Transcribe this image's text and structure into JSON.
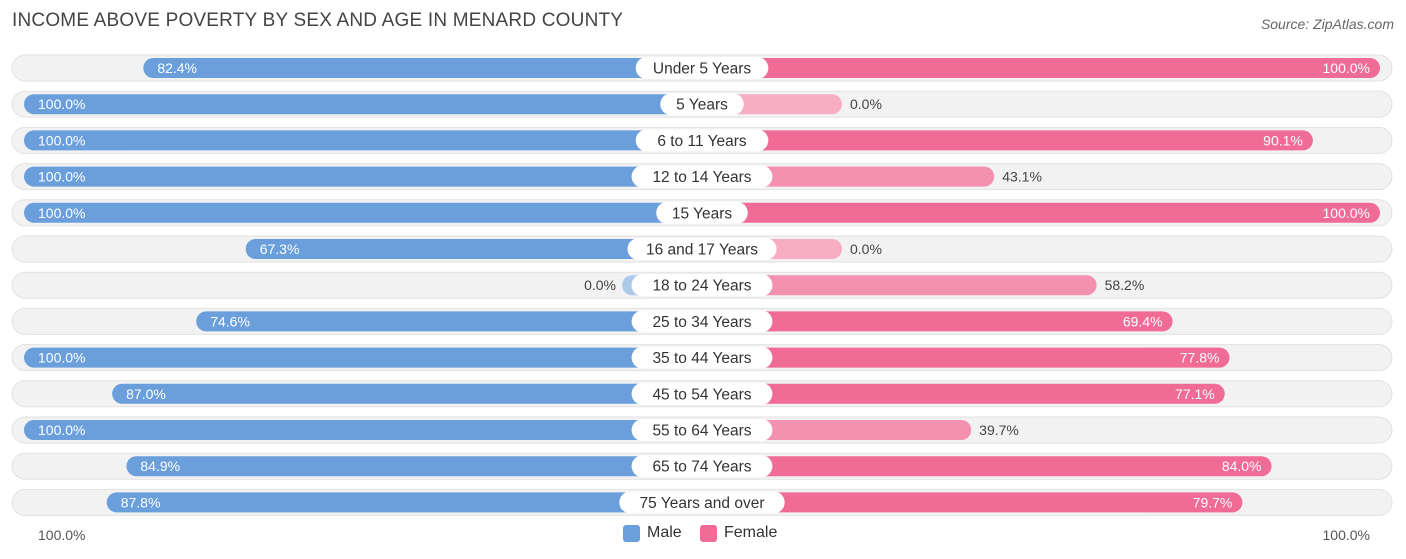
{
  "chart_data": {
    "type": "bar",
    "orientation": "diverging-horizontal",
    "title": "INCOME ABOVE POVERTY BY SEX AND AGE IN MENARD COUNTY",
    "source": "Source: ZipAtlas.com",
    "categories": [
      "Under 5 Years",
      "5 Years",
      "6 to 11 Years",
      "12 to 14 Years",
      "15 Years",
      "16 and 17 Years",
      "18 to 24 Years",
      "25 to 34 Years",
      "35 to 44 Years",
      "45 to 54 Years",
      "55 to 64 Years",
      "65 to 74 Years",
      "75 Years and over"
    ],
    "series": [
      {
        "name": "Male",
        "color": "#6a9fdc",
        "values": [
          82.4,
          100.0,
          100.0,
          100.0,
          100.0,
          67.3,
          0.0,
          74.6,
          100.0,
          87.0,
          100.0,
          84.9,
          87.8
        ],
        "labels": [
          "82.4%",
          "100.0%",
          "100.0%",
          "100.0%",
          "100.0%",
          "67.3%",
          "0.0%",
          "74.6%",
          "100.0%",
          "87.0%",
          "100.0%",
          "84.9%",
          "87.8%"
        ]
      },
      {
        "name": "Female",
        "color": "#f06b96",
        "values": [
          100.0,
          0.0,
          90.1,
          43.1,
          100.0,
          0.0,
          58.2,
          69.4,
          77.8,
          77.1,
          39.7,
          84.0,
          79.7
        ],
        "labels": [
          "100.0%",
          "0.0%",
          "90.1%",
          "43.1%",
          "100.0%",
          "0.0%",
          "58.2%",
          "69.4%",
          "77.8%",
          "77.1%",
          "39.7%",
          "84.0%",
          "79.7%"
        ]
      }
    ],
    "axis_left_label": "100.0%",
    "axis_right_label": "100.0%",
    "xlim": [
      0,
      100
    ],
    "legend_position": "bottom-center"
  }
}
